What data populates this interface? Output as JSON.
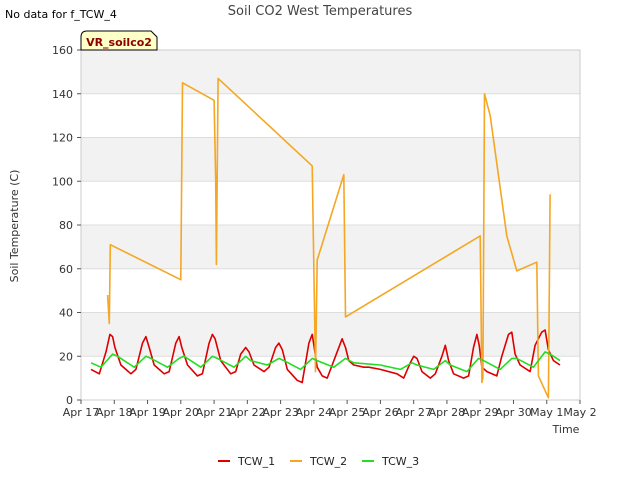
{
  "chart_data": {
    "type": "line",
    "title": "Soil CO2 West Temperatures",
    "note": "No data for f_TCW_4",
    "site_label": "VR_soilco2",
    "xlabel": "Time",
    "ylabel": "Soil Temperature (C)",
    "xlim": [
      0,
      15
    ],
    "ylim": [
      0,
      160
    ],
    "x_ticks": [
      {
        "x": 0,
        "label": "Apr 17"
      },
      {
        "x": 1,
        "label": "Apr 18"
      },
      {
        "x": 2,
        "label": "Apr 19"
      },
      {
        "x": 3,
        "label": "Apr 20"
      },
      {
        "x": 4,
        "label": "Apr 21"
      },
      {
        "x": 5,
        "label": "Apr 22"
      },
      {
        "x": 6,
        "label": "Apr 23"
      },
      {
        "x": 7,
        "label": "Apr 24"
      },
      {
        "x": 8,
        "label": "Apr 25"
      },
      {
        "x": 9,
        "label": "Apr 26"
      },
      {
        "x": 10,
        "label": "Apr 27"
      },
      {
        "x": 11,
        "label": "Apr 28"
      },
      {
        "x": 12,
        "label": "Apr 29"
      },
      {
        "x": 13,
        "label": "Apr 30"
      },
      {
        "x": 14,
        "label": "May 1"
      },
      {
        "x": 15,
        "label": "May 2"
      }
    ],
    "y_ticks": [
      0,
      20,
      40,
      60,
      80,
      100,
      120,
      140,
      160
    ],
    "series": [
      {
        "name": "TCW_1",
        "color": "#dd0000",
        "x": [
          0.3,
          0.55,
          0.75,
          0.87,
          0.95,
          1.02,
          1.2,
          1.5,
          1.65,
          1.85,
          1.95,
          2.05,
          2.2,
          2.5,
          2.65,
          2.85,
          2.95,
          3.03,
          3.2,
          3.5,
          3.65,
          3.85,
          3.95,
          4.03,
          4.2,
          4.5,
          4.65,
          4.8,
          4.95,
          5.05,
          5.2,
          5.5,
          5.65,
          5.85,
          5.95,
          6.05,
          6.2,
          6.5,
          6.65,
          6.85,
          6.95,
          7.0,
          7.1,
          7.25,
          7.4,
          7.65,
          7.85,
          7.95,
          8.05,
          8.2,
          8.5,
          8.65,
          9.0,
          9.5,
          9.7,
          9.9,
          10.0,
          10.1,
          10.25,
          10.5,
          10.65,
          10.85,
          10.95,
          11.05,
          11.2,
          11.5,
          11.65,
          11.8,
          11.9,
          11.97,
          12.05,
          12.2,
          12.5,
          12.65,
          12.85,
          12.95,
          13.05,
          13.2,
          13.5,
          13.65,
          13.85,
          13.95,
          14.05,
          14.2,
          14.4
        ],
        "values": [
          14,
          12,
          22,
          30,
          29,
          24,
          16,
          12,
          14,
          26,
          29,
          24,
          16,
          12,
          13,
          26,
          29,
          24,
          16,
          11,
          12,
          26,
          30,
          28,
          18,
          12,
          13,
          21,
          24,
          22,
          16,
          13,
          15,
          24,
          26,
          23,
          14,
          9,
          8,
          26,
          30,
          25,
          15,
          11,
          10,
          20,
          28,
          24,
          18,
          16,
          15,
          15,
          14,
          12,
          10,
          17,
          20,
          19,
          13,
          10,
          12,
          20,
          25,
          18,
          12,
          10,
          11,
          24,
          30,
          25,
          15,
          13,
          11,
          20,
          30,
          31,
          21,
          16,
          13,
          25,
          31,
          32,
          23,
          18,
          16
        ]
      },
      {
        "name": "TCW_2",
        "color": "#f5a623",
        "x": [
          0.8,
          0.85,
          0.88,
          3.0,
          3.05,
          4.0,
          4.05,
          4.07,
          4.12,
          6.95,
          7.05,
          7.1,
          7.9,
          7.95,
          12.0,
          12.05,
          12.08,
          12.13,
          12.3,
          12.8,
          13.1,
          13.7,
          13.75,
          14.05,
          14.1
        ],
        "values": [
          48,
          35,
          71,
          55,
          145,
          137,
          100,
          62,
          147,
          107,
          13,
          64,
          103,
          38,
          75,
          8,
          10,
          140,
          130,
          75,
          59,
          63,
          11,
          1,
          94
        ]
      },
      {
        "name": "TCW_3",
        "color": "#22dd22",
        "x": [
          0.3,
          0.6,
          0.95,
          1.1,
          1.6,
          1.95,
          2.1,
          2.6,
          2.95,
          3.1,
          3.6,
          3.95,
          4.1,
          4.6,
          4.95,
          5.1,
          5.6,
          5.95,
          6.1,
          6.6,
          6.95,
          7.1,
          7.6,
          7.95,
          8.2,
          9.0,
          9.6,
          9.95,
          10.1,
          10.6,
          10.95,
          11.1,
          11.6,
          11.95,
          12.1,
          12.6,
          12.95,
          13.1,
          13.6,
          13.95,
          14.1,
          14.4
        ],
        "values": [
          17,
          15,
          21,
          20,
          15,
          20,
          19,
          15,
          19,
          20,
          15,
          20,
          19,
          15,
          20,
          18,
          16,
          19,
          18,
          14,
          19,
          18,
          15,
          19,
          17,
          16,
          14,
          17,
          16,
          14,
          18,
          16,
          13,
          19,
          18,
          14,
          19,
          19,
          15,
          22,
          21,
          18
        ]
      }
    ]
  }
}
